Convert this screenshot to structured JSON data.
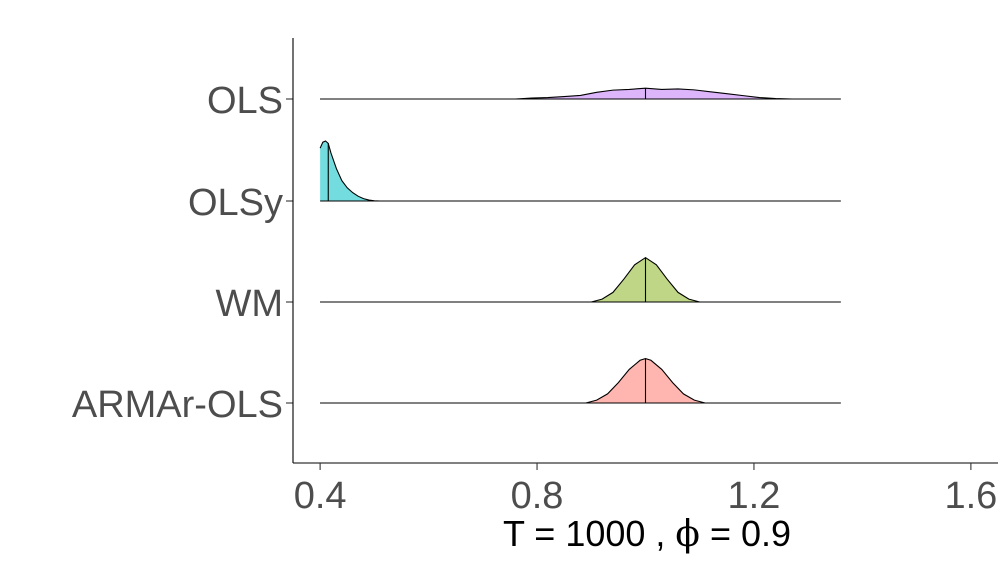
{
  "chart_data": {
    "type": "ridgeline",
    "title": "",
    "xlabel": "T = 1000 , ϕ = 0.9",
    "xlabel_parts": {
      "t_label": "T",
      "t_value": "1000",
      "phi_label": "ϕ",
      "phi_value": "0.9",
      "equals": "=",
      "comma": ","
    },
    "ylabel": "",
    "xlim": [
      0.35,
      1.65
    ],
    "xticks": [
      0.4,
      0.8,
      1.2,
      1.6
    ],
    "xtick_labels": [
      "0.4",
      "0.8",
      "1.2",
      "1.6"
    ],
    "grid": false,
    "categories": [
      "OLS",
      "OLSy",
      "WM",
      "ARMAr-OLS"
    ],
    "series": [
      {
        "name": "OLS",
        "color": "#DCB5FA",
        "range": [
          0.4,
          1.36
        ],
        "median": 1.0,
        "density_x": [
          0.4,
          0.76,
          0.79,
          0.82,
          0.85,
          0.88,
          0.91,
          0.94,
          0.97,
          1.0,
          1.03,
          1.06,
          1.09,
          1.12,
          1.15,
          1.18,
          1.21,
          1.24,
          1.27,
          1.36
        ],
        "density_y": [
          0.0,
          0.0,
          0.04,
          0.06,
          0.1,
          0.15,
          0.28,
          0.37,
          0.4,
          0.45,
          0.4,
          0.42,
          0.38,
          0.3,
          0.22,
          0.14,
          0.06,
          0.02,
          0.0,
          0.0
        ]
      },
      {
        "name": "OLSy",
        "color": "#73DCDE",
        "range": [
          0.4,
          1.36
        ],
        "median": 0.415,
        "density_x": [
          0.4,
          0.405,
          0.41,
          0.415,
          0.42,
          0.43,
          0.44,
          0.45,
          0.46,
          0.47,
          0.48,
          0.49,
          0.5,
          0.51,
          1.36
        ],
        "density_y": [
          2.2,
          2.45,
          2.5,
          2.4,
          2.0,
          1.35,
          0.85,
          0.55,
          0.35,
          0.2,
          0.1,
          0.04,
          0.01,
          0.0,
          0.0
        ]
      },
      {
        "name": "WM",
        "color": "#BED685",
        "range": [
          0.4,
          1.36
        ],
        "median": 1.0,
        "density_x": [
          0.4,
          0.9,
          0.92,
          0.94,
          0.96,
          0.98,
          1.0,
          1.02,
          1.04,
          1.06,
          1.08,
          1.1,
          1.36
        ],
        "density_y": [
          0.0,
          0.0,
          0.12,
          0.4,
          0.95,
          1.55,
          1.85,
          1.55,
          0.95,
          0.4,
          0.12,
          0.0,
          0.0
        ]
      },
      {
        "name": "ARMAr-OLS",
        "color": "#FFB6B0",
        "range": [
          0.4,
          1.36
        ],
        "median": 1.0,
        "density_x": [
          0.4,
          0.89,
          0.91,
          0.93,
          0.95,
          0.97,
          0.99,
          1.0,
          1.01,
          1.03,
          1.05,
          1.07,
          1.09,
          1.11,
          1.36
        ],
        "density_y": [
          0.0,
          0.0,
          0.12,
          0.38,
          0.85,
          1.4,
          1.78,
          1.85,
          1.78,
          1.4,
          0.85,
          0.38,
          0.12,
          0.0,
          0.0
        ]
      }
    ]
  }
}
